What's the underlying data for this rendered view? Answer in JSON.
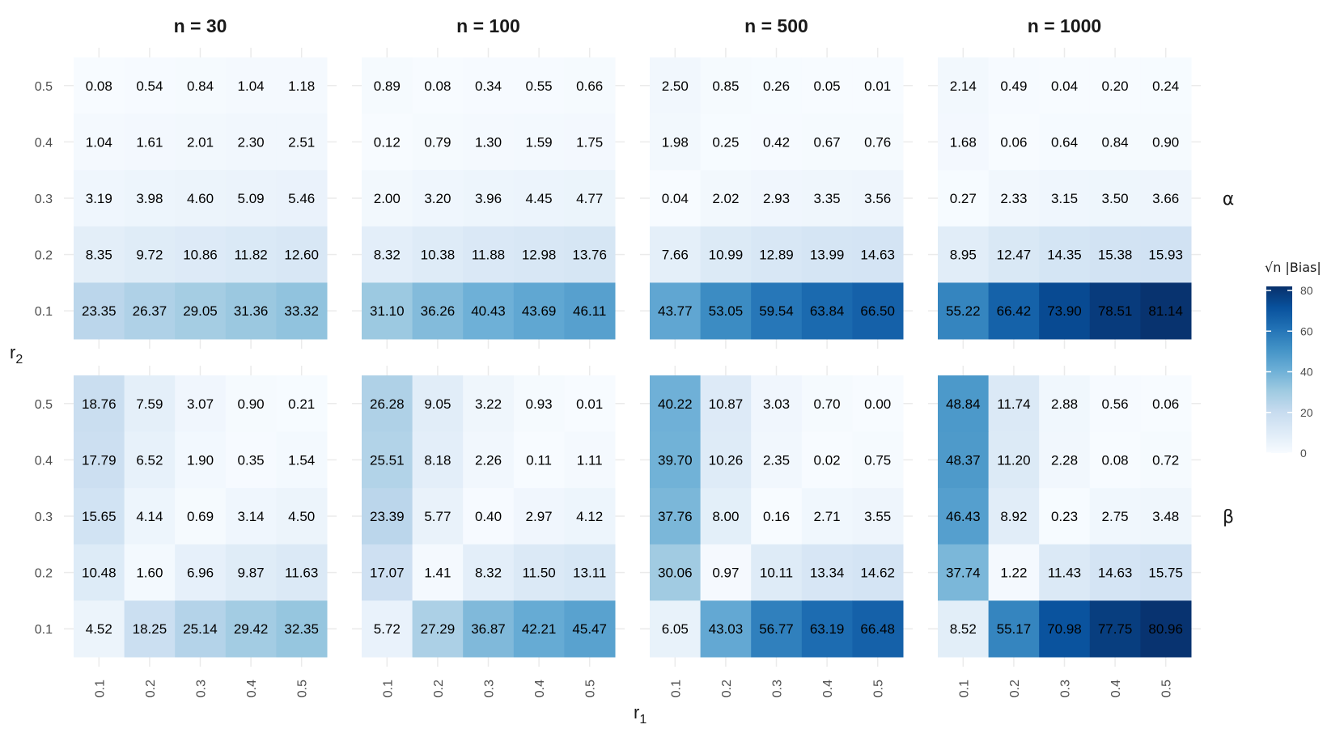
{
  "chart_data": {
    "type": "heatmap",
    "xlabel": "r",
    "xlabel_sub": "1",
    "ylabel": "r",
    "ylabel_sub": "2",
    "x_categories": [
      "0.1",
      "0.2",
      "0.3",
      "0.4",
      "0.5"
    ],
    "y_categories": [
      "0.5",
      "0.4",
      "0.3",
      "0.2",
      "0.1"
    ],
    "columns": [
      "n = 30",
      "n = 100",
      "n = 500",
      "n = 1000"
    ],
    "rows": [
      "α",
      "β"
    ],
    "legend": {
      "title": "√n |Bias|",
      "ticks": [
        0,
        20,
        40,
        60,
        80
      ],
      "range": [
        0,
        82
      ],
      "low_color": "#f7fbff",
      "high_color": "#08306b",
      "position": "right"
    },
    "value_precision": 2,
    "panels": [
      {
        "row": "α",
        "col": "n = 30",
        "values": [
          [
            0.08,
            0.54,
            0.84,
            1.04,
            1.18
          ],
          [
            1.04,
            1.61,
            2.01,
            2.3,
            2.51
          ],
          [
            3.19,
            3.98,
            4.6,
            5.09,
            5.46
          ],
          [
            8.35,
            9.72,
            10.86,
            11.82,
            12.6
          ],
          [
            23.35,
            26.37,
            29.05,
            31.36,
            33.32
          ]
        ]
      },
      {
        "row": "α",
        "col": "n = 100",
        "values": [
          [
            0.89,
            0.08,
            0.34,
            0.55,
            0.66
          ],
          [
            0.12,
            0.79,
            1.3,
            1.59,
            1.75
          ],
          [
            2.0,
            3.2,
            3.96,
            4.45,
            4.77
          ],
          [
            8.32,
            10.38,
            11.88,
            12.98,
            13.76
          ],
          [
            31.1,
            36.26,
            40.43,
            43.69,
            46.11
          ]
        ]
      },
      {
        "row": "α",
        "col": "n = 500",
        "values": [
          [
            2.5,
            0.85,
            0.26,
            0.05,
            0.01
          ],
          [
            1.98,
            0.25,
            0.42,
            0.67,
            0.76
          ],
          [
            0.04,
            2.02,
            2.93,
            3.35,
            3.56
          ],
          [
            7.66,
            10.99,
            12.89,
            13.99,
            14.63
          ],
          [
            43.77,
            53.05,
            59.54,
            63.84,
            66.5
          ]
        ]
      },
      {
        "row": "α",
        "col": "n = 1000",
        "values": [
          [
            2.14,
            0.49,
            0.04,
            0.2,
            0.24
          ],
          [
            1.68,
            0.06,
            0.64,
            0.84,
            0.9
          ],
          [
            0.27,
            2.33,
            3.15,
            3.5,
            3.66
          ],
          [
            8.95,
            12.47,
            14.35,
            15.38,
            15.93
          ],
          [
            55.22,
            66.42,
            73.9,
            78.51,
            81.14
          ]
        ]
      },
      {
        "row": "β",
        "col": "n = 30",
        "values": [
          [
            18.76,
            7.59,
            3.07,
            0.9,
            0.21
          ],
          [
            17.79,
            6.52,
            1.9,
            0.35,
            1.54
          ],
          [
            15.65,
            4.14,
            0.69,
            3.14,
            4.5
          ],
          [
            10.48,
            1.6,
            6.96,
            9.87,
            11.63
          ],
          [
            4.52,
            18.25,
            25.14,
            29.42,
            32.35
          ]
        ]
      },
      {
        "row": "β",
        "col": "n = 100",
        "values": [
          [
            26.28,
            9.05,
            3.22,
            0.93,
            0.01
          ],
          [
            25.51,
            8.18,
            2.26,
            0.11,
            1.11
          ],
          [
            23.39,
            5.77,
            0.4,
            2.97,
            4.12
          ],
          [
            17.07,
            1.41,
            8.32,
            11.5,
            13.11
          ],
          [
            5.72,
            27.29,
            36.87,
            42.21,
            45.47
          ]
        ]
      },
      {
        "row": "β",
        "col": "n = 500",
        "values": [
          [
            40.22,
            10.87,
            3.03,
            0.7,
            0.0
          ],
          [
            39.7,
            10.26,
            2.35,
            0.02,
            0.75
          ],
          [
            37.76,
            8.0,
            0.16,
            2.71,
            3.55
          ],
          [
            30.06,
            0.97,
            10.11,
            13.34,
            14.62
          ],
          [
            6.05,
            43.03,
            56.77,
            63.19,
            66.48
          ]
        ]
      },
      {
        "row": "β",
        "col": "n = 1000",
        "values": [
          [
            48.84,
            11.74,
            2.88,
            0.56,
            0.06
          ],
          [
            48.37,
            11.2,
            2.28,
            0.08,
            0.72
          ],
          [
            46.43,
            8.92,
            0.23,
            2.75,
            3.48
          ],
          [
            37.74,
            1.22,
            11.43,
            14.63,
            15.75
          ],
          [
            8.52,
            55.17,
            70.98,
            77.75,
            80.96
          ]
        ]
      }
    ]
  }
}
